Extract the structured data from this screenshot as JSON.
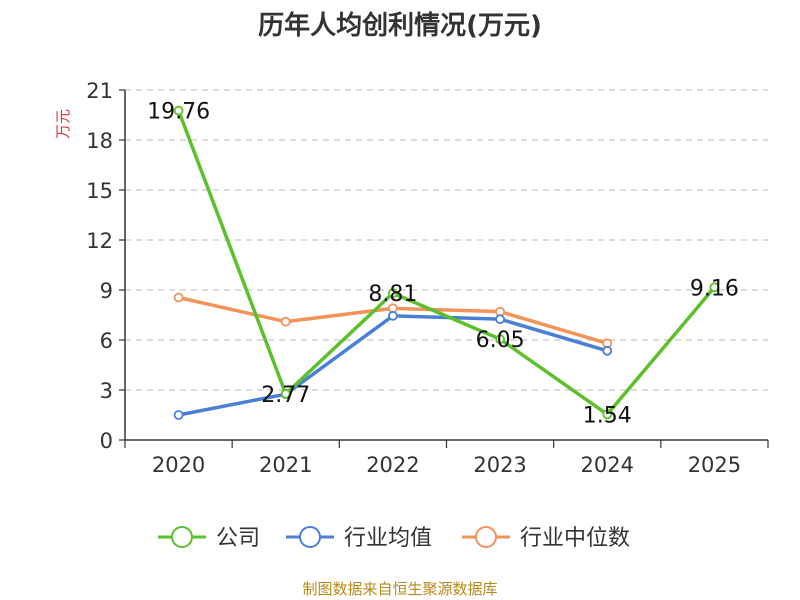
{
  "chart_data": {
    "type": "line",
    "title": "历年人均创利情况(万元)",
    "ylabel": "万元",
    "categories": [
      "2020",
      "2021",
      "2022",
      "2023",
      "2024",
      "2025"
    ],
    "ylim": [
      0,
      21
    ],
    "yticks": [
      0,
      3,
      6,
      9,
      12,
      15,
      18,
      21
    ],
    "grid": "horizontal-dashed",
    "legend_position": "bottom",
    "series": [
      {
        "name": "公司",
        "color": "#5cc02a",
        "values": [
          19.76,
          2.77,
          8.81,
          6.05,
          1.54,
          9.16
        ],
        "labels": [
          "19.76",
          "2.77",
          "8.81",
          "6.05",
          "1.54",
          "9.16"
        ]
      },
      {
        "name": "行业均值",
        "color": "#4a7fd8",
        "values": [
          1.5,
          2.75,
          7.45,
          7.25,
          5.35,
          null
        ]
      },
      {
        "name": "行业中位数",
        "color": "#f3935a",
        "values": [
          8.55,
          7.1,
          7.9,
          7.7,
          5.8,
          null
        ]
      }
    ],
    "source": "制图数据来自恒生聚源数据库",
    "ylabel_color": "#d9363e",
    "source_color": "#b8891a"
  }
}
